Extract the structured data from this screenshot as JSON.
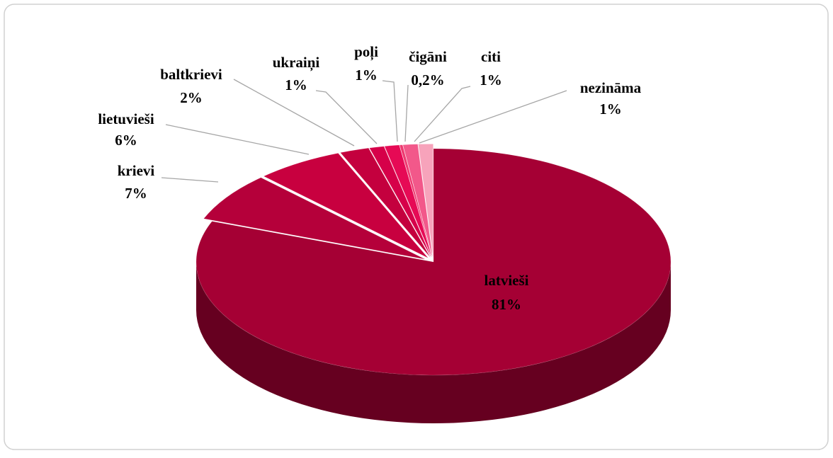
{
  "chart_data": {
    "type": "pie",
    "categories": [
      "latvieši",
      "krievi",
      "lietuvieši",
      "baltkrievi",
      "ukraiņi",
      "poļi",
      "čigāni",
      "citi",
      "nezināma"
    ],
    "values": [
      81,
      7,
      6,
      2,
      1,
      1,
      0.2,
      1,
      1
    ],
    "value_labels": [
      "81%",
      "7%",
      "6%",
      "2%",
      "1%",
      "1%",
      "0,2%",
      "1%",
      "1%"
    ],
    "colors": [
      "#a50034",
      "#b5003a",
      "#c8003f",
      "#c4003e",
      "#d60049",
      "#e60a55",
      "#ee3a70",
      "#f2588a",
      "#f7a3bb"
    ]
  }
}
